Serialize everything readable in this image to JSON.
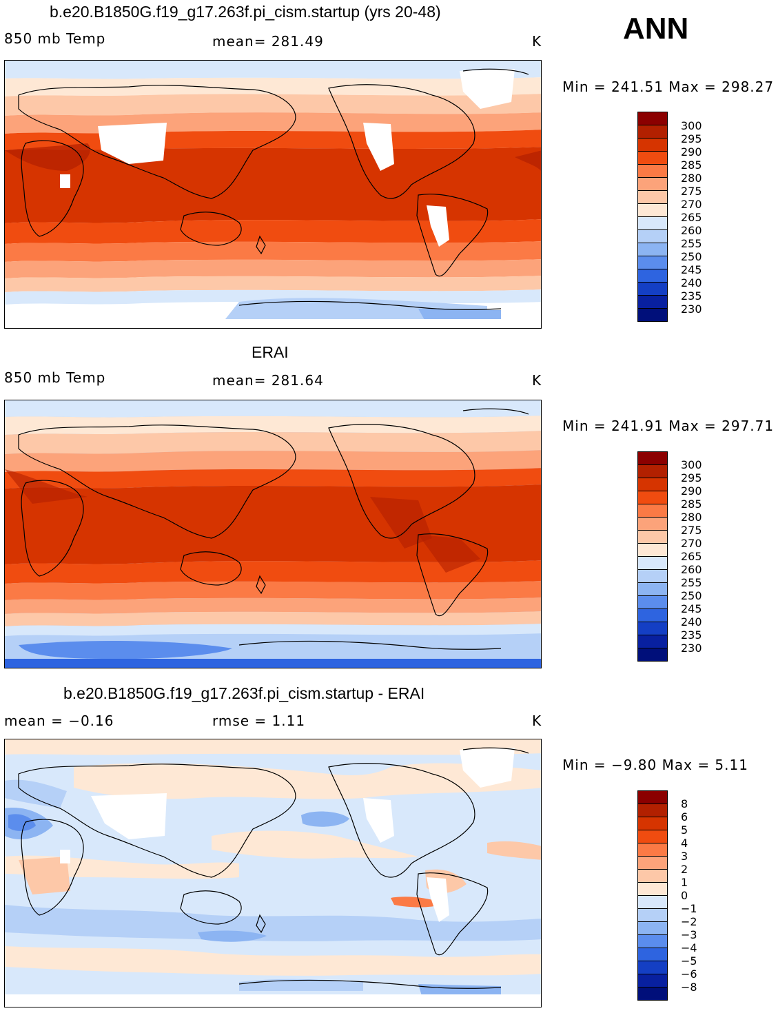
{
  "ann_label": "ANN",
  "panels": [
    {
      "title": "b.e20.B1850G.f19_g17.263f.pi_cism.startup (yrs 20-48)",
      "left_label": "850 mb Temp",
      "center_label": "mean=  281.49",
      "units": "K",
      "minmax": "Min = 241.51 Max = 298.27",
      "colorbar_levels": [
        "300",
        "295",
        "290",
        "285",
        "280",
        "275",
        "270",
        "265",
        "260",
        "255",
        "250",
        "245",
        "240",
        "235",
        "230"
      ],
      "colors": [
        "#8b0000",
        "#b22000",
        "#d63400",
        "#f04c10",
        "#fb7a45",
        "#fca37a",
        "#fdc8a8",
        "#fee8d5",
        "#d8e8fb",
        "#b5d0f7",
        "#8cb4f2",
        "#5b8ded",
        "#2e64e0",
        "#143fc4",
        "#0820a0",
        "#000f7a"
      ]
    },
    {
      "title": "ERAI",
      "left_label": "850 mb Temp",
      "center_label": "mean=  281.64",
      "units": "K",
      "minmax": "Min = 241.91 Max = 297.71",
      "colorbar_levels": [
        "300",
        "295",
        "290",
        "285",
        "280",
        "275",
        "270",
        "265",
        "260",
        "255",
        "250",
        "245",
        "240",
        "235",
        "230"
      ],
      "colors": [
        "#8b0000",
        "#b22000",
        "#d63400",
        "#f04c10",
        "#fb7a45",
        "#fca37a",
        "#fdc8a8",
        "#fee8d5",
        "#d8e8fb",
        "#b5d0f7",
        "#8cb4f2",
        "#5b8ded",
        "#2e64e0",
        "#143fc4",
        "#0820a0",
        "#000f7a"
      ]
    },
    {
      "title": "b.e20.B1850G.f19_g17.263f.pi_cism.startup - ERAI",
      "left_label": "mean =   −0.16",
      "center_label": "rmse =     1.11",
      "units": "K",
      "minmax": "Min =   −9.80 Max =    5.11",
      "colorbar_levels": [
        "8",
        "6",
        "5",
        "4",
        "3",
        "2",
        "1",
        "0",
        "−1",
        "−2",
        "−3",
        "−4",
        "−5",
        "−6",
        "−8"
      ],
      "colors": [
        "#8b0000",
        "#b22000",
        "#d63400",
        "#f04c10",
        "#fb7a45",
        "#fca37a",
        "#fdc8a8",
        "#fee8d5",
        "#d8e8fb",
        "#b5d0f7",
        "#8cb4f2",
        "#5b8ded",
        "#2e64e0",
        "#143fc4",
        "#0820a0",
        "#000f7a"
      ]
    }
  ]
}
